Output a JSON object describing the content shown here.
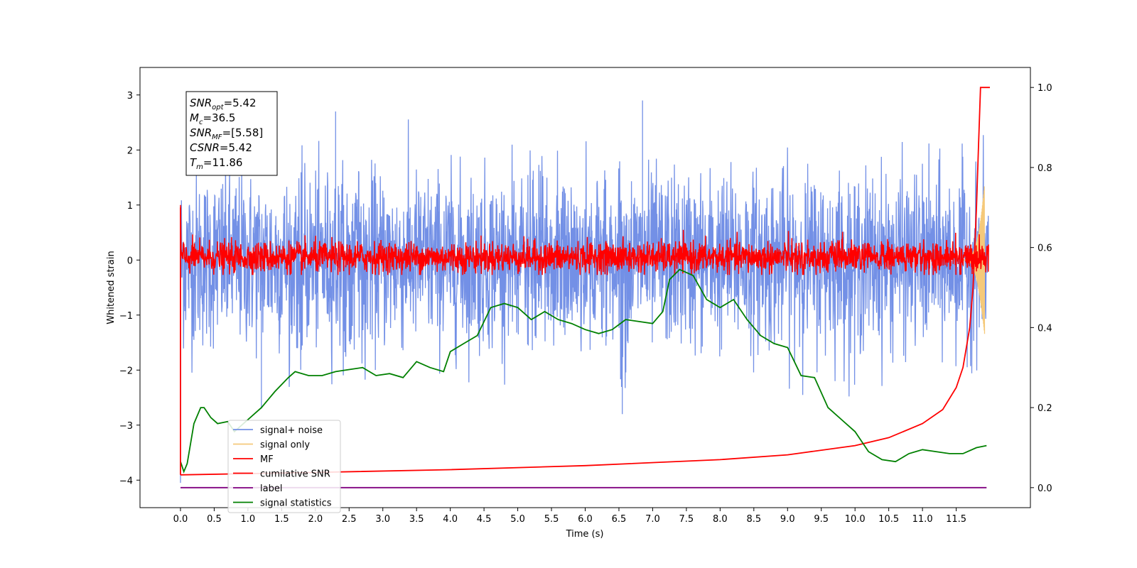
{
  "chart_data": {
    "type": "line",
    "xlabel": "Time (s)",
    "ylabel": "Whitened strain",
    "xlim": [
      -0.6,
      12.6
    ],
    "ylim": [
      -4.5,
      3.5
    ],
    "y2lim": [
      -0.05,
      1.05
    ],
    "xticks": [
      "0.0",
      "0.5",
      "1.0",
      "1.5",
      "2.0",
      "2.5",
      "3.0",
      "3.5",
      "4.0",
      "4.5",
      "5.0",
      "5.5",
      "6.0",
      "6.5",
      "7.0",
      "7.5",
      "8.0",
      "8.5",
      "9.0",
      "9.5",
      "10.0",
      "10.5",
      "11.0",
      "11.5"
    ],
    "yticks": [
      "3",
      "2",
      "1",
      "0",
      "−1",
      "−2",
      "−3",
      "−4"
    ],
    "y2ticks": [
      "1.0",
      "0.8",
      "0.6",
      "0.4",
      "0.2",
      "0.0"
    ],
    "legend_position": "lower-left",
    "stats": {
      "snr_opt": {
        "base": "SNR",
        "sub": "opt",
        "value": "=5.42"
      },
      "mc": {
        "base": "M",
        "sub": "c",
        "value": "=36.5"
      },
      "snr_mf": {
        "base": "SNR",
        "sub": "MF",
        "value": "=[5.58]"
      },
      "csnr": {
        "base": "CSNR",
        "value": "=5.42"
      },
      "tm": {
        "base": "T",
        "sub": "m",
        "value": "=11.86"
      }
    },
    "series": [
      {
        "name": "signal+ noise",
        "color": "#7390e6",
        "axis": "left",
        "kind": "noise",
        "band_y": [
          -1.9,
          1.9
        ],
        "peaks_y": [
          2.7,
          2.9,
          -2.7,
          -2.8
        ]
      },
      {
        "name": "signal only",
        "color": "#f5c97a",
        "axis": "left",
        "kind": "chirp",
        "end_x": 12.0
      },
      {
        "name": "MF",
        "color": "#ff0000",
        "axis": "left",
        "kind": "noise",
        "band_y": [
          -0.25,
          0.5
        ]
      },
      {
        "name": "cumilative SNR",
        "color": "#ff0000",
        "axis": "right",
        "x": [
          0.0,
          2.0,
          4.0,
          6.0,
          8.0,
          9.0,
          10.0,
          10.5,
          11.0,
          11.3,
          11.5,
          11.6,
          11.7,
          11.75,
          11.8,
          11.83,
          11.86,
          12.0
        ],
        "y": [
          0.032,
          0.038,
          0.045,
          0.055,
          0.07,
          0.082,
          0.105,
          0.125,
          0.16,
          0.195,
          0.25,
          0.3,
          0.4,
          0.5,
          0.7,
          0.85,
          1.0,
          1.0
        ]
      },
      {
        "name": "label",
        "color": "#800080",
        "axis": "right",
        "x": [
          0.0,
          11.95
        ],
        "y": [
          0.0,
          0.0
        ]
      },
      {
        "name": "signal statistics",
        "color": "#008000",
        "axis": "right",
        "x": [
          0.0,
          0.05,
          0.1,
          0.2,
          0.3,
          0.35,
          0.45,
          0.55,
          0.7,
          0.8,
          1.0,
          1.2,
          1.4,
          1.6,
          1.7,
          1.9,
          2.1,
          2.3,
          2.5,
          2.7,
          2.9,
          3.1,
          3.3,
          3.5,
          3.7,
          3.9,
          4.0,
          4.2,
          4.4,
          4.6,
          4.8,
          5.0,
          5.2,
          5.4,
          5.6,
          5.8,
          6.0,
          6.2,
          6.4,
          6.6,
          6.8,
          7.0,
          7.15,
          7.25,
          7.4,
          7.6,
          7.8,
          8.0,
          8.2,
          8.4,
          8.6,
          8.8,
          9.0,
          9.2,
          9.4,
          9.6,
          9.8,
          10.0,
          10.2,
          10.4,
          10.6,
          10.8,
          11.0,
          11.2,
          11.4,
          11.6,
          11.8,
          11.95
        ],
        "y": [
          0.065,
          0.04,
          0.06,
          0.16,
          0.2,
          0.2,
          0.175,
          0.16,
          0.165,
          0.14,
          0.17,
          0.2,
          0.24,
          0.275,
          0.29,
          0.28,
          0.28,
          0.29,
          0.295,
          0.3,
          0.28,
          0.285,
          0.275,
          0.315,
          0.3,
          0.29,
          0.34,
          0.36,
          0.38,
          0.45,
          0.46,
          0.45,
          0.42,
          0.44,
          0.42,
          0.41,
          0.395,
          0.385,
          0.395,
          0.42,
          0.415,
          0.41,
          0.44,
          0.52,
          0.545,
          0.53,
          0.47,
          0.45,
          0.47,
          0.42,
          0.38,
          0.36,
          0.35,
          0.28,
          0.275,
          0.2,
          0.17,
          0.14,
          0.09,
          0.07,
          0.065,
          0.085,
          0.095,
          0.09,
          0.085,
          0.085,
          0.1,
          0.105
        ]
      }
    ]
  }
}
